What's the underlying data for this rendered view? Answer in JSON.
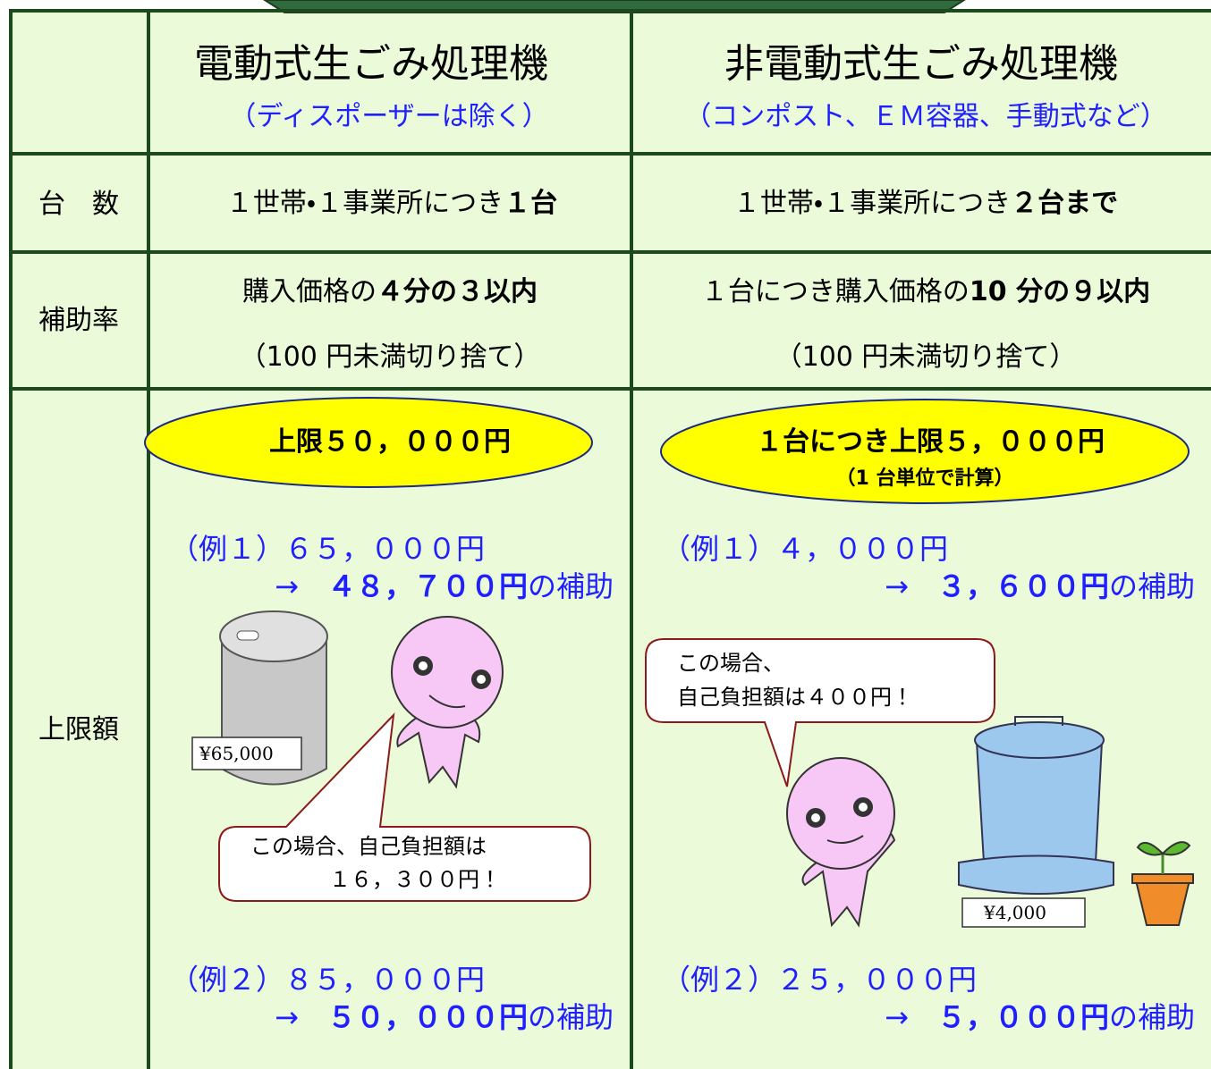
{
  "columns": [
    {
      "title": "電動式生ごみ処理機",
      "subtitle": "（ディスポーザーは除く）"
    },
    {
      "title": "非電動式生ごみ処理機",
      "subtitle": "（コンポスト、ＥＭ容器、手動式など）"
    }
  ],
  "rows": [
    {
      "label": "台　数",
      "cells": [
        {
          "text": "１世帯・１事業所につき",
          "strong": "１台"
        },
        {
          "text": "１世帯・１事業所につき",
          "strong": "２台まで"
        }
      ]
    },
    {
      "label": "補助率",
      "cells": [
        {
          "text": "購入価格の",
          "strong": "４分の３以内",
          "note": "（100 円未満切り捨て）"
        },
        {
          "text": "１台につき購入価格の",
          "strong": "10 分の９以内",
          "note": "（100 円未満切り捨て）"
        }
      ]
    },
    {
      "label": "上限額",
      "cells": [
        {
          "limit": "上限５０，０００円",
          "examples": [
            {
              "case": "（例１）６５，０００円",
              "arrow": "→",
              "amount": "４８，７００円",
              "suffix": "の補助"
            },
            {
              "case": "（例２）８５，０００円",
              "arrow": "→",
              "amount": "５０，０００円",
              "suffix": "の補助"
            }
          ],
          "bubble": [
            "この場合、自己負担額は",
            "１６，３００円！"
          ],
          "price_tag": "¥65,000"
        },
        {
          "limit": "１台につき上限５，０００円",
          "limit_note": "（1 台単位で計算）",
          "examples": [
            {
              "case": "（例１）４，０００円",
              "arrow": "→",
              "amount": "３，６００円",
              "suffix": "の補助"
            },
            {
              "case": "（例２）２５，０００円",
              "arrow": "→",
              "amount": "５，０００円",
              "suffix": "の補助"
            }
          ],
          "bubble": [
            "この場合、",
            "自己負担額は４００円！"
          ],
          "price_tag": "¥4,000"
        }
      ]
    }
  ]
}
